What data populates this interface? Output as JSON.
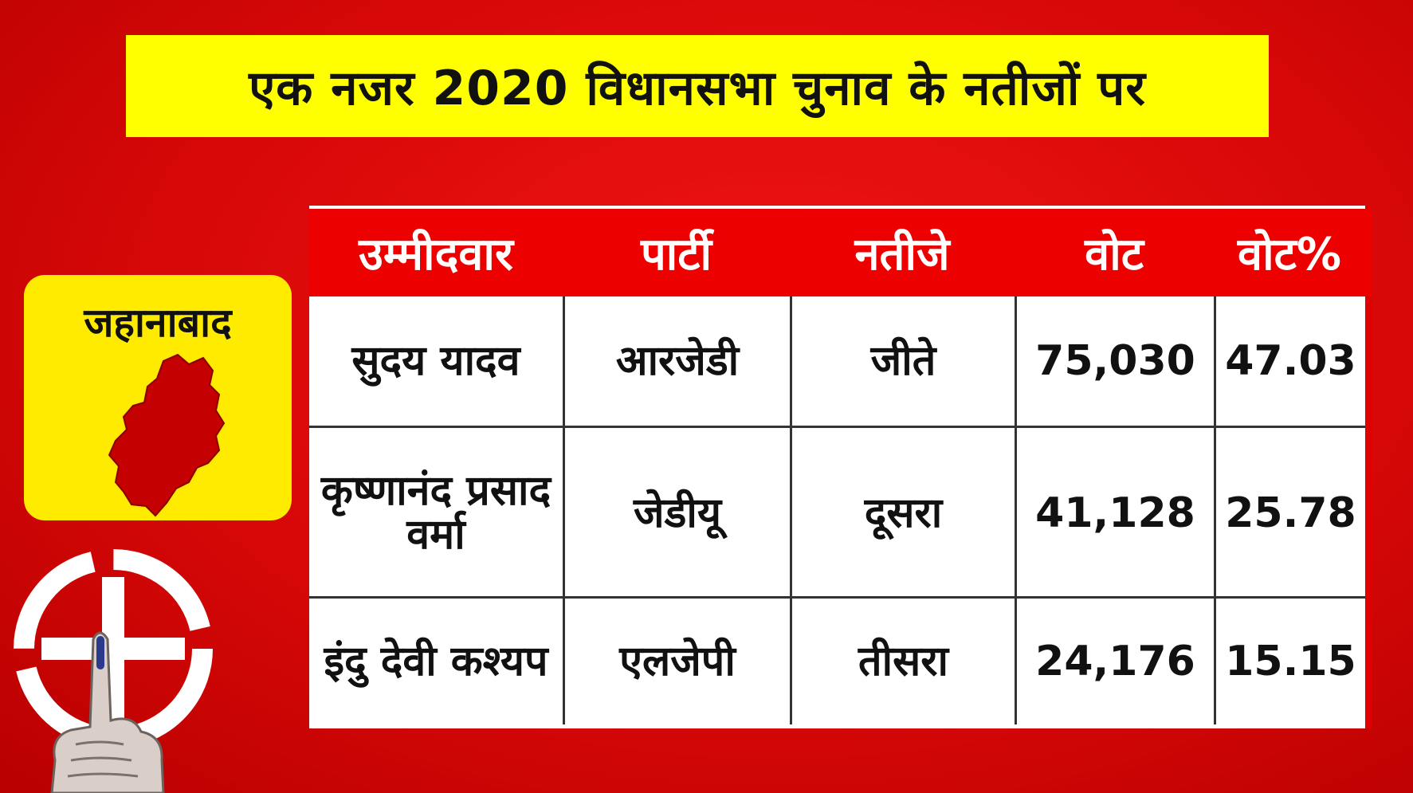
{
  "title": "एक नजर 2020 विधानसभा चुनाव के नतीजों पर",
  "district": {
    "name": "जहानाबाद",
    "map_icon": "district-map-icon"
  },
  "election_symbol_icon": "swastika-ballot-symbol-icon",
  "voting_finger_icon": "inked-finger-icon",
  "colors": {
    "background": "#e00a0a",
    "banner": "#ffff00",
    "header": "#ec0000",
    "map_fill": "#c40000",
    "card": "#ffeb00"
  },
  "table": {
    "headers": [
      "उम्मीदवार",
      "पार्टी",
      "नतीजे",
      "वोट",
      "वोट%"
    ],
    "rows": [
      {
        "candidate": "सुदय यादव",
        "party": "आरजेडी",
        "result": "जीते",
        "votes": "75,030",
        "vote_pct": "47.03"
      },
      {
        "candidate": "कृष्णानंद प्रसाद वर्मा",
        "party": "जेडीयू",
        "result": "दूसरा",
        "votes": "41,128",
        "vote_pct": "25.78"
      },
      {
        "candidate": "इंदु देवी कश्यप",
        "party": "एलजेपी",
        "result": "तीसरा",
        "votes": "24,176",
        "vote_pct": "15.15"
      }
    ]
  }
}
